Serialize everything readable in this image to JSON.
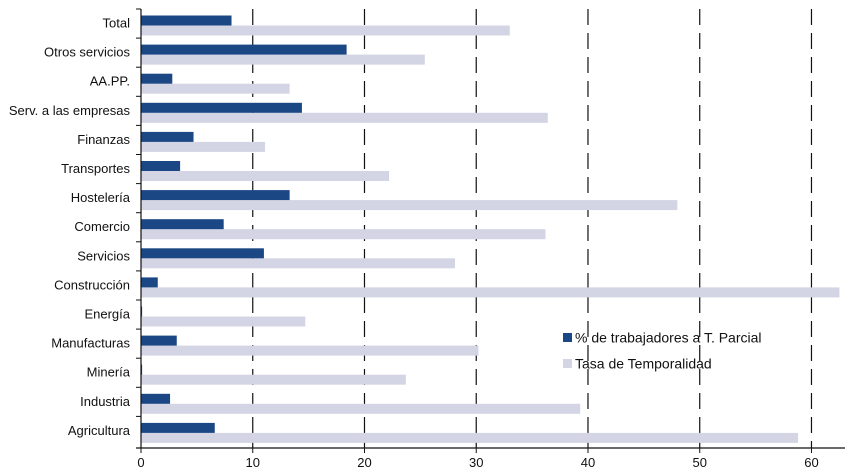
{
  "chart_data": {
    "type": "bar",
    "orientation": "horizontal",
    "categories": [
      "Total",
      "Otros servicios",
      "AA.PP.",
      "Serv. a las empresas",
      "Finanzas",
      "Transportes",
      "Hostelería",
      "Comercio",
      "Servicios",
      "Construcción",
      "Energía",
      "Manufacturas",
      "Minería",
      "Industria",
      "Agricultura"
    ],
    "series": [
      {
        "name": "% de trabajadores a T. Parcial",
        "color": "#1c4785",
        "values": [
          8.1,
          18.4,
          2.8,
          14.4,
          4.7,
          3.5,
          13.3,
          7.4,
          11.0,
          1.5,
          0.1,
          3.2,
          0.1,
          2.6,
          6.6
        ]
      },
      {
        "name": "Tasa de Temporalidad",
        "color": "#d3d5e4",
        "values": [
          33.0,
          25.4,
          13.3,
          36.4,
          11.1,
          22.2,
          48.0,
          36.2,
          28.1,
          62.5,
          14.7,
          30.2,
          23.7,
          39.3,
          58.8
        ]
      }
    ],
    "xlim": [
      0,
      63
    ],
    "xticks": [
      "0",
      "10",
      "20",
      "30",
      "40",
      "50",
      "60"
    ],
    "xtick_values": [
      0,
      10,
      20,
      30,
      40,
      50,
      60
    ],
    "gridlines": "vertical dashed",
    "legend_position": "lower-right",
    "title": "",
    "xlabel": "",
    "ylabel": ""
  }
}
